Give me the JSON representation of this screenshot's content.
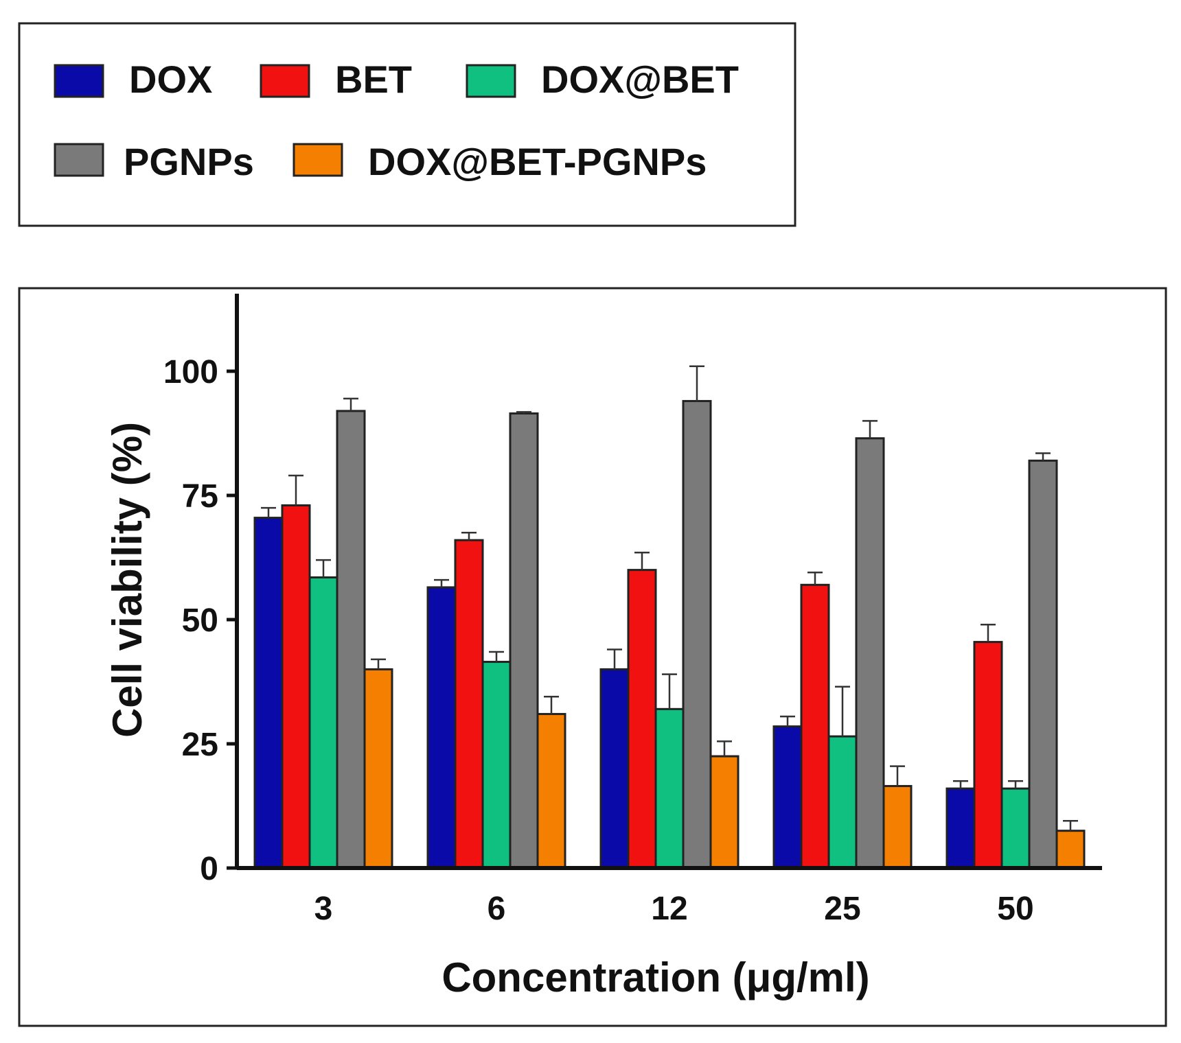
{
  "chart_data": {
    "type": "bar",
    "title": "",
    "xlabel": "Concentration (μg/ml)",
    "ylabel": "Cell viability (%)",
    "ylim": [
      0,
      115
    ],
    "yticks": [
      0,
      25,
      50,
      75,
      100
    ],
    "ytick_labels": [
      "0",
      "25",
      "50",
      "75",
      "100"
    ],
    "categories": [
      "3",
      "6",
      "12",
      "25",
      "50"
    ],
    "grid": false,
    "legend_position": "top",
    "series": [
      {
        "name": "DOX",
        "color": "#0a0aa8",
        "values": [
          70.5,
          56.5,
          40,
          28.5,
          16
        ],
        "errors": [
          2,
          1.5,
          4,
          2,
          1.5
        ]
      },
      {
        "name": "BET",
        "color": "#f21111",
        "values": [
          73,
          66,
          60,
          57,
          45.5
        ],
        "errors": [
          6,
          1.5,
          3.5,
          2.5,
          3.5
        ]
      },
      {
        "name": "DOX@BET",
        "color": "#10c080",
        "values": [
          58.5,
          41.5,
          32,
          26.5,
          16
        ],
        "errors": [
          3.5,
          2,
          7,
          10,
          1.5
        ]
      },
      {
        "name": "PGNPs",
        "color": "#7a7a7a",
        "values": [
          92,
          91.5,
          94,
          86.5,
          82
        ],
        "errors": [
          2.5,
          0.3,
          7,
          3.5,
          1.5
        ]
      },
      {
        "name": "DOX@BET-PGNPs",
        "color": "#f57f00",
        "values": [
          40,
          31,
          22.5,
          16.5,
          7.5
        ],
        "errors": [
          2,
          3.5,
          3,
          4,
          2
        ]
      }
    ]
  }
}
